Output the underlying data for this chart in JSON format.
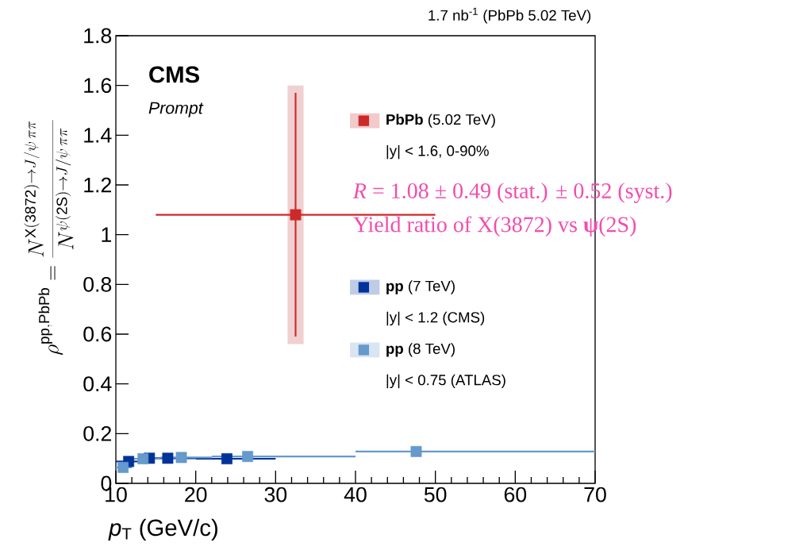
{
  "chart_data": {
    "type": "scatter",
    "title": "1.7 nb$^{-1}$ (PbPb 5.02 TeV)",
    "xlabel": "*p*$_{T}$ (GeV/c)",
    "ylabel": "\\rho^{\\mathrm{pp,PbPb}} = \\frac{N^{\\mathrm{X(3872)}\\rightarrow J/\\psi\\,\\pi\\pi}}{N^{\\psi(\\mathrm{2S})\\rightarrow J/\\psi\\,\\pi\\pi}}",
    "xlim": [
      10,
      70
    ],
    "xticks": [
      10,
      20,
      30,
      40,
      50,
      60,
      70
    ],
    "ylim": [
      0,
      1.8
    ],
    "yticks": [
      0,
      0.2,
      0.4,
      0.6,
      0.8,
      1,
      1.2,
      1.4,
      1.6,
      1.8
    ],
    "marker": "square",
    "legend": "top right",
    "series": [
      {
        "type": "bar",
        "color": "#f0d0d0",
        "x": [
          32.5
        ],
        "base": [
          0.56
        ],
        "values": [
          1.04
        ]
      },
      {
        "name": "**PbPb** (5.02 TeV)",
        "color": "#cc2a2a",
        "x": [
          32.5
        ],
        "values": [
          1.08
        ],
        "errors": [
          0.49
        ],
        "xerrors": [
          [
            15,
            50
          ]
        ]
      },
      {
        "name": "**pp** (7 TeV)",
        "color": "#003399",
        "x": [
          11.6,
          14.2,
          16.5,
          23.9
        ],
        "values": [
          0.088,
          0.101,
          0.101,
          0.099
        ],
        "xerrors": [
          [
            10,
            12.8
          ],
          [
            12.8,
            15.5
          ],
          [
            15.5,
            20
          ],
          [
            20,
            30
          ]
        ]
      },
      {
        "name": "**pp** (8 TeV)",
        "color": "#6699cc",
        "x": [
          10.9,
          13.4,
          18.2,
          26.5,
          47.6
        ],
        "values": [
          0.064,
          0.099,
          0.104,
          0.108,
          0.128
        ],
        "xerrors": [
          [
            10,
            12
          ],
          [
            12,
            15.6
          ],
          [
            15.6,
            22
          ],
          [
            22,
            40
          ],
          [
            40,
            70
          ]
        ]
      }
    ],
    "annotations": [
      "CMS",
      "Prompt",
      "|y| < 1.6, 0-90%",
      "|y| < 1.2 (CMS)",
      "|y| < 0.75 (ATLAS)",
      "*R* = 1.08 ± 0.49 (stat.) ± 0.52 (syst.)",
      "Yield ratio of X(3872) vs **ψ**(2S)"
    ]
  }
}
